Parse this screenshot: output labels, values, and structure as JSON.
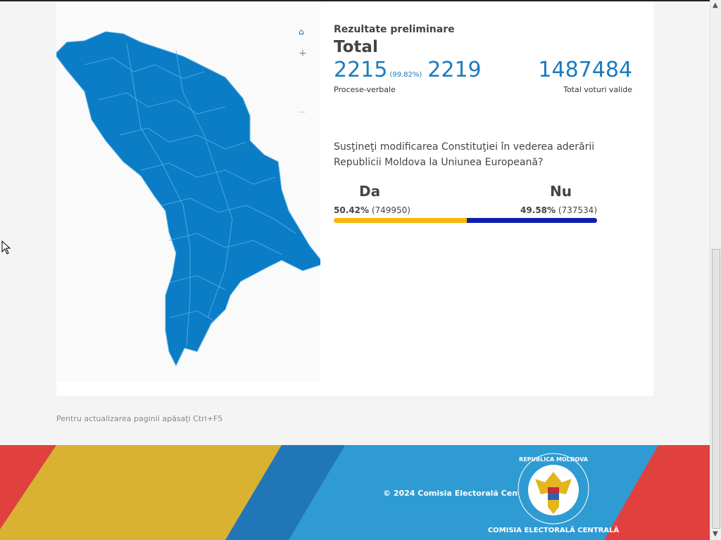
{
  "map": {
    "controls": {
      "home_icon": "home-icon",
      "zoom_in_label": "+",
      "zoom_out_label": "—"
    },
    "fill_color": "#0a7dc6"
  },
  "results": {
    "subtitle": "Rezultate preliminare",
    "title": "Total",
    "processed": "2215",
    "processed_pct": "(99.82%)",
    "total_reports": "2219",
    "valid_votes": "1487484",
    "processed_label": "Procese-verbale",
    "valid_votes_label": "Total voturi valide"
  },
  "question": "Susţineţi modificarea Constituţiei în vederea aderării Republicii Moldova la Uniunea Europeană?",
  "options": {
    "yes": {
      "label": "Da",
      "percent": "50.42%",
      "votes": "(749950)",
      "share": 50.42,
      "color": "#f5b800"
    },
    "no": {
      "label": "Nu",
      "percent": "49.58%",
      "votes": "(737534)",
      "share": 49.58,
      "color": "#0a1fb0"
    }
  },
  "refresh_note": "Pentru actualizarea paginii apăsaţi Ctrl+F5",
  "footer": {
    "copyright": "© 2024 Comisia Electorală Centrală",
    "seal_top": "REPUBLICA MOLDOVA",
    "seal_bottom": "COMISIA ELECTORALĂ CENTRALĂ"
  }
}
